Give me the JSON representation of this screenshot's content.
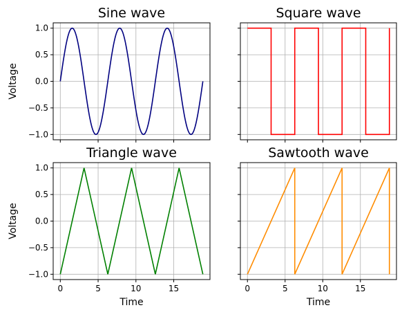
{
  "chart_data": [
    {
      "type": "line",
      "title": "Sine wave",
      "xlabel": "",
      "ylabel": "Voltage",
      "xlim": [
        -0.94,
        19.79
      ],
      "ylim": [
        -1.1,
        1.1
      ],
      "xticks": [
        0,
        5,
        10,
        15
      ],
      "xtick_labels_shown": false,
      "yticks": [
        -1.0,
        -0.5,
        0.0,
        0.5,
        1.0
      ],
      "ytick_labels": [
        "−1.0",
        "−0.5",
        "0.0",
        "0.5",
        "1.0"
      ],
      "ytick_labels_shown": true,
      "grid": true,
      "color": "#000080",
      "function": "sine",
      "x_range": [
        0,
        18.85
      ],
      "period": 6.2832,
      "points": [
        [
          0,
          0
        ],
        [
          1.571,
          1
        ],
        [
          3.142,
          0
        ],
        [
          4.712,
          -1
        ],
        [
          6.283,
          0
        ],
        [
          7.854,
          1
        ],
        [
          9.425,
          0
        ],
        [
          10.996,
          -1
        ],
        [
          12.566,
          0
        ],
        [
          14.137,
          1
        ],
        [
          15.708,
          0
        ],
        [
          17.279,
          -1
        ],
        [
          18.85,
          0
        ]
      ]
    },
    {
      "type": "line",
      "title": "Square wave",
      "xlabel": "",
      "ylabel": "",
      "xlim": [
        -0.94,
        19.79
      ],
      "ylim": [
        -1.1,
        1.1
      ],
      "xticks": [
        0,
        5,
        10,
        15
      ],
      "xtick_labels_shown": false,
      "yticks": [
        -1.0,
        -0.5,
        0.0,
        0.5,
        1.0
      ],
      "ytick_labels_shown": false,
      "grid": true,
      "color": "#ff0000",
      "function": "square",
      "x_range": [
        0,
        18.85
      ],
      "period": 6.2832,
      "points": [
        [
          0,
          1
        ],
        [
          3.142,
          1
        ],
        [
          3.142,
          -1
        ],
        [
          6.283,
          -1
        ],
        [
          6.283,
          1
        ],
        [
          9.425,
          1
        ],
        [
          9.425,
          -1
        ],
        [
          12.566,
          -1
        ],
        [
          12.566,
          1
        ],
        [
          15.708,
          1
        ],
        [
          15.708,
          -1
        ],
        [
          18.85,
          -1
        ],
        [
          18.85,
          1
        ]
      ]
    },
    {
      "type": "line",
      "title": "Triangle wave",
      "xlabel": "Time",
      "ylabel": "Voltage",
      "xlim": [
        -0.94,
        19.79
      ],
      "ylim": [
        -1.1,
        1.1
      ],
      "xticks": [
        0,
        5,
        10,
        15
      ],
      "xtick_labels": [
        "0",
        "5",
        "10",
        "15"
      ],
      "xtick_labels_shown": true,
      "yticks": [
        -1.0,
        -0.5,
        0.0,
        0.5,
        1.0
      ],
      "ytick_labels": [
        "−1.0",
        "−0.5",
        "0.0",
        "0.5",
        "1.0"
      ],
      "ytick_labels_shown": true,
      "grid": true,
      "color": "#008000",
      "function": "triangle",
      "x_range": [
        0,
        18.85
      ],
      "period": 6.2832,
      "points": [
        [
          0,
          -1
        ],
        [
          3.142,
          1
        ],
        [
          6.283,
          -1
        ],
        [
          9.425,
          1
        ],
        [
          12.566,
          -1
        ],
        [
          15.708,
          1
        ],
        [
          18.85,
          -1
        ]
      ]
    },
    {
      "type": "line",
      "title": "Sawtooth wave",
      "xlabel": "Time",
      "ylabel": "",
      "xlim": [
        -0.94,
        19.79
      ],
      "ylim": [
        -1.1,
        1.1
      ],
      "xticks": [
        0,
        5,
        10,
        15
      ],
      "xtick_labels": [
        "0",
        "5",
        "10",
        "15"
      ],
      "xtick_labels_shown": true,
      "yticks": [
        -1.0,
        -0.5,
        0.0,
        0.5,
        1.0
      ],
      "ytick_labels_shown": false,
      "grid": true,
      "color": "#ff8c00",
      "function": "sawtooth",
      "x_range": [
        0,
        18.85
      ],
      "period": 6.2832,
      "points": [
        [
          0,
          -1
        ],
        [
          6.283,
          1
        ],
        [
          6.283,
          -1
        ],
        [
          12.566,
          1
        ],
        [
          12.566,
          -1
        ],
        [
          18.85,
          1
        ],
        [
          18.85,
          -1
        ]
      ]
    }
  ]
}
